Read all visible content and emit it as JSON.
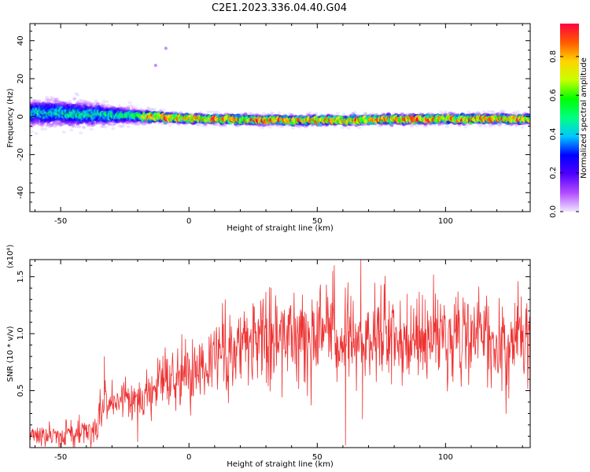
{
  "title": "C2E1.2023.336.04.40.G04",
  "chart_data": [
    {
      "type": "heatmap",
      "xlabel": "Height of straight line (km)",
      "ylabel": "Frequency (Hz)",
      "xlim": [
        -62,
        133
      ],
      "ylim": [
        -50,
        49
      ],
      "xticks": [
        -50,
        0,
        50,
        100
      ],
      "yticks": [
        -40,
        -20,
        0,
        20,
        40
      ],
      "colorbar": {
        "label": "Normalized spectral amplitude",
        "range": [
          0.0,
          0.97
        ],
        "ticks": [
          "0.0",
          "0.2",
          "0.4",
          "0.6",
          "0.8"
        ],
        "colormap": [
          "#f2e6ff",
          "#b04cff",
          "#5000ff",
          "#0000ff",
          "#00c8ff",
          "#00ff80",
          "#00ff00",
          "#c8ff00",
          "#ffd400",
          "#ff5a00",
          "#ff0040"
        ]
      },
      "ridge": {
        "center_hz": [
          [
            -62,
            2
          ],
          [
            -50,
            2
          ],
          [
            -40,
            1
          ],
          [
            -30,
            1
          ],
          [
            -22,
            0.5
          ],
          [
            -15,
            0
          ],
          [
            0,
            -1
          ],
          [
            20,
            -1.5
          ],
          [
            40,
            -2
          ],
          [
            60,
            -2
          ],
          [
            80,
            -1.5
          ],
          [
            100,
            -1
          ],
          [
            133,
            -1.5
          ]
        ],
        "half_width_hz": [
          [
            -62,
            7
          ],
          [
            -45,
            7
          ],
          [
            -30,
            5
          ],
          [
            -22,
            4
          ],
          [
            -10,
            2.5
          ],
          [
            133,
            2.5
          ]
        ],
        "peak_amplitude": [
          [
            -62,
            0.45
          ],
          [
            -30,
            0.5
          ],
          [
            -20,
            0.55
          ],
          [
            -15,
            0.9
          ],
          [
            0,
            0.85
          ],
          [
            133,
            0.85
          ]
        ]
      },
      "outliers": [
        {
          "x": -13,
          "y": 27,
          "v": 0.15
        },
        {
          "x": -9,
          "y": 36,
          "v": 0.15
        }
      ]
    },
    {
      "type": "line",
      "xlabel": "Height of straight line (km)",
      "ylabel": "SNR (10 * v/v)",
      "y_multiplier": "(x10⁴)",
      "xlim": [
        -62,
        133
      ],
      "ylim": [
        0,
        1.65
      ],
      "xticks": [
        -50,
        0,
        50,
        100
      ],
      "yticks": [
        "0.5",
        "1.0",
        "1.5"
      ],
      "series": [
        {
          "color": "#ee3333",
          "trend": [
            [
              -62,
              0.1
            ],
            [
              -45,
              0.12
            ],
            [
              -36,
              0.17
            ],
            [
              -33,
              0.38
            ],
            [
              -20,
              0.42
            ],
            [
              -10,
              0.58
            ],
            [
              0,
              0.68
            ],
            [
              10,
              0.78
            ],
            [
              20,
              0.88
            ],
            [
              30,
              0.95
            ],
            [
              40,
              1.0
            ],
            [
              50,
              1.02
            ],
            [
              60,
              0.98
            ],
            [
              70,
              1.0
            ],
            [
              80,
              0.97
            ],
            [
              90,
              0.95
            ],
            [
              100,
              0.95
            ],
            [
              110,
              0.95
            ],
            [
              120,
              0.93
            ],
            [
              133,
              0.95
            ]
          ],
          "spikes": [
            {
              "x": 27.5,
              "y": 1.07
            },
            {
              "x": 28.5,
              "y": 1.12
            },
            {
              "x": 56,
              "y": 1.55
            },
            {
              "x": 61,
              "y": 0.02
            },
            {
              "x": 62,
              "y": 1.45
            },
            {
              "x": 67,
              "y": 1.65
            },
            {
              "x": 67.6,
              "y": 0.25
            },
            {
              "x": 85,
              "y": 1.35
            },
            {
              "x": 92,
              "y": 1.3
            },
            {
              "x": 97,
              "y": 1.3
            },
            {
              "x": 104,
              "y": 1.32
            },
            {
              "x": 127,
              "y": 1.27
            },
            {
              "x": -33,
              "y": 0.8
            },
            {
              "x": -20,
              "y": 0.05
            }
          ]
        }
      ]
    }
  ]
}
